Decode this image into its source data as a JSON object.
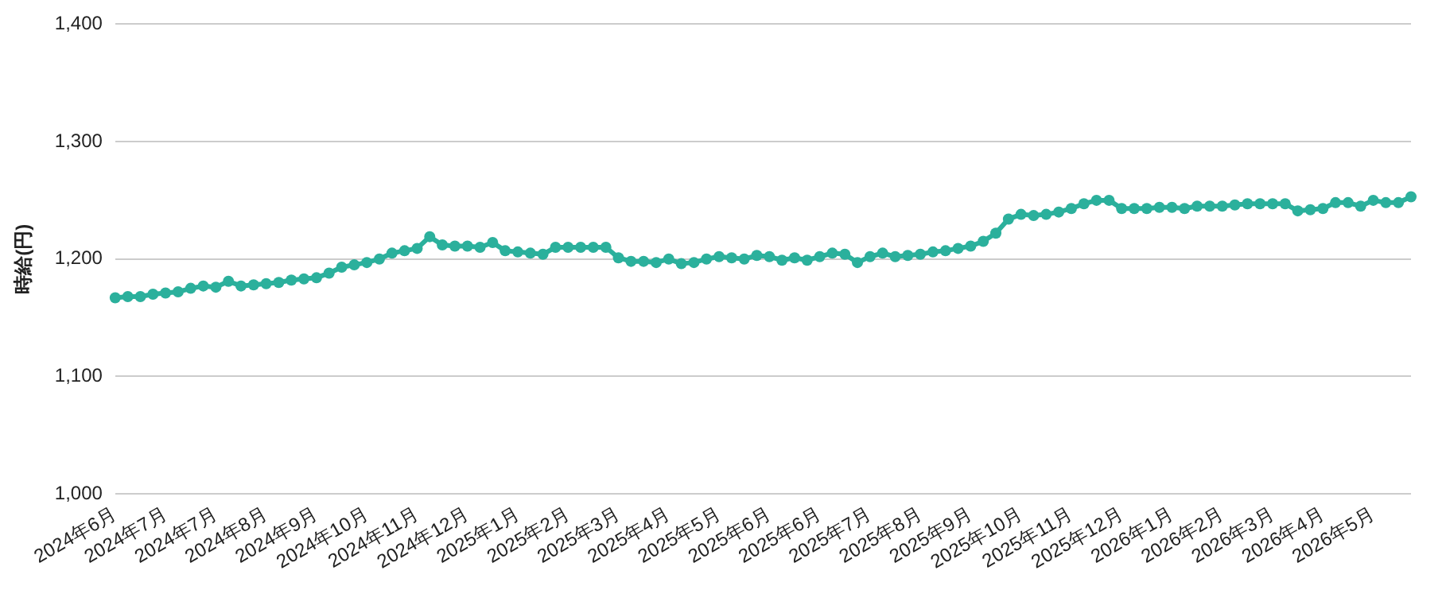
{
  "chart_data": {
    "type": "line",
    "ylabel": "時給(円)",
    "categories": [
      "2024年6月",
      null,
      null,
      null,
      "2024年7月",
      null,
      null,
      null,
      "2024年7月",
      null,
      null,
      null,
      "2024年8月",
      null,
      null,
      null,
      "2024年9月",
      null,
      null,
      null,
      "2024年10月",
      null,
      null,
      null,
      "2024年11月",
      null,
      null,
      null,
      "2024年12月",
      null,
      null,
      null,
      "2025年1月",
      null,
      null,
      null,
      "2025年2月",
      null,
      null,
      null,
      "2025年3月",
      null,
      null,
      null,
      "2025年4月",
      null,
      null,
      null,
      "2025年5月",
      null,
      null,
      null,
      "2025年6月",
      null,
      null,
      null,
      "2025年6月",
      null,
      null,
      null,
      "2025年7月",
      null,
      null,
      null,
      "2025年8月",
      null,
      null,
      null,
      "2025年9月",
      null,
      null,
      null,
      "2025年10月",
      null,
      null,
      null,
      "2025年11月",
      null,
      null,
      null,
      "2025年12月",
      null,
      null,
      null,
      "2026年1月",
      null,
      null,
      null,
      "2026年2月",
      null,
      null,
      null,
      "2026年3月",
      null,
      null,
      null,
      "2026年4月",
      null,
      null,
      null,
      "2026年5月",
      null,
      null,
      null
    ],
    "series": [
      {
        "color": "#2bb09c",
        "values": [
          1167,
          1168,
          1168,
          1170,
          1171,
          1172,
          1175,
          1177,
          1176,
          1181,
          1177,
          1178,
          1179,
          1180,
          1182,
          1183,
          1184,
          1188,
          1193,
          1195,
          1197,
          1200,
          1205,
          1207,
          1209,
          1219,
          1212,
          1211,
          1211,
          1210,
          1214,
          1207,
          1206,
          1205,
          1204,
          1210,
          1210,
          1210,
          1210,
          1210,
          1201,
          1198,
          1198,
          1197,
          1200,
          1196,
          1197,
          1200,
          1202,
          1201,
          1200,
          1203,
          1202,
          1199,
          1201,
          1199,
          1202,
          1205,
          1204,
          1197,
          1202,
          1205,
          1202,
          1203,
          1204,
          1206,
          1207,
          1209,
          1211,
          1215,
          1222,
          1234,
          1238,
          1237,
          1238,
          1240,
          1243,
          1247,
          1250,
          1250,
          1243,
          1243,
          1243,
          1244,
          1244,
          1243,
          1245,
          1245,
          1245,
          1246,
          1247,
          1247,
          1247,
          1247,
          1241,
          1242,
          1243,
          1248,
          1248,
          1245,
          1250,
          1248,
          1248,
          1253
        ]
      }
    ],
    "ylim": [
      1000,
      1400
    ],
    "yticks": [
      {
        "value": 1000,
        "label": "1,000"
      },
      {
        "value": 1100,
        "label": "1,100"
      },
      {
        "value": 1200,
        "label": "1,200"
      },
      {
        "value": 1300,
        "label": "1,300"
      },
      {
        "value": 1400,
        "label": "1,400"
      }
    ],
    "grid": "y",
    "legend": false,
    "marker": "circle",
    "line_style": "solid"
  }
}
